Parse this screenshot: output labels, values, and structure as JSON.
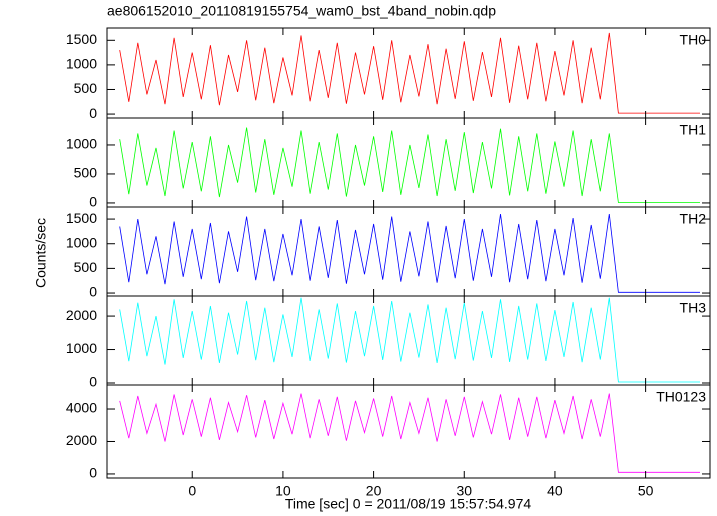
{
  "chart_data": [
    {
      "type": "line",
      "title": "ae806152010_20110819155754_wam0_bst_4band_nobin.qdp",
      "series": [
        {
          "name": "TH0",
          "color": "#ff0000",
          "values": [
            1300,
            250,
            1450,
            400,
            1100,
            200,
            1550,
            350,
            1250,
            300,
            1400,
            180,
            1200,
            450,
            1500,
            280,
            1350,
            220,
            1150,
            380,
            1600,
            260,
            1300,
            330,
            1450,
            210,
            1250,
            400,
            1380,
            290,
            1500,
            240,
            1200,
            360,
            1420,
            200,
            1330,
            310,
            1480,
            270,
            1260,
            350,
            1550,
            230,
            1390,
            300,
            1450,
            260,
            1280,
            380,
            1500,
            220,
            1350,
            300,
            1650,
            20,
            20,
            20,
            20,
            20,
            20,
            20,
            20,
            20,
            20
          ]
        }
      ],
      "ylim": [
        -80,
        1750
      ],
      "yticks": [
        0,
        500,
        1000,
        1500
      ]
    },
    {
      "type": "line",
      "series": [
        {
          "name": "TH1",
          "color": "#00ff00",
          "values": [
            1100,
            150,
            1200,
            300,
            950,
            120,
            1250,
            250,
            1050,
            200,
            1150,
            100,
            1000,
            350,
            1300,
            180,
            1100,
            140,
            950,
            280,
            1250,
            160,
            1050,
            230,
            1200,
            110,
            1000,
            300,
            1150,
            190,
            1250,
            140,
            1000,
            260,
            1180,
            120,
            1100,
            210,
            1220,
            170,
            1050,
            250,
            1280,
            130,
            1150,
            200,
            1200,
            160,
            1060,
            280,
            1250,
            120,
            1100,
            200,
            1200,
            8,
            8,
            8,
            8,
            8,
            8,
            8,
            8,
            8,
            8
          ]
        }
      ],
      "ylim": [
        -70,
        1465
      ],
      "yticks": [
        0,
        500,
        1000
      ]
    },
    {
      "type": "line",
      "ylabel": "Counts/sec",
      "series": [
        {
          "name": "TH2",
          "color": "#0000ff",
          "values": [
            1350,
            220,
            1500,
            380,
            1150,
            180,
            1450,
            330,
            1300,
            280,
            1420,
            200,
            1250,
            430,
            1550,
            260,
            1300,
            240,
            1200,
            360,
            1500,
            250,
            1350,
            310,
            1480,
            190,
            1280,
            380,
            1400,
            270,
            1550,
            230,
            1250,
            340,
            1450,
            210,
            1360,
            300,
            1500,
            250,
            1300,
            330,
            1600,
            220,
            1400,
            280,
            1480,
            240,
            1300,
            360,
            1520,
            210,
            1380,
            290,
            1600,
            15,
            15,
            15,
            15,
            15,
            15,
            15,
            15,
            15,
            15
          ]
        }
      ],
      "ylim": [
        -60,
        1745
      ],
      "yticks": [
        0,
        500,
        1000,
        1500
      ]
    },
    {
      "type": "line",
      "series": [
        {
          "name": "TH3",
          "color": "#00ffff",
          "values": [
            2200,
            650,
            2400,
            800,
            2000,
            550,
            2500,
            750,
            2150,
            700,
            2300,
            600,
            2100,
            850,
            2450,
            680,
            2250,
            620,
            2050,
            780,
            2550,
            660,
            2200,
            730,
            2380,
            610,
            2150,
            800,
            2300,
            690,
            2450,
            640,
            2100,
            760,
            2350,
            600,
            2250,
            710,
            2400,
            670,
            2150,
            750,
            2500,
            630,
            2300,
            700,
            2380,
            660,
            2180,
            780,
            2420,
            620,
            2250,
            700,
            2550,
            30,
            30,
            30,
            30,
            30,
            30,
            30,
            30,
            30,
            30
          ]
        }
      ],
      "ylim": [
        -60,
        2600
      ],
      "yticks": [
        0,
        1000,
        2000
      ]
    },
    {
      "type": "line",
      "xlabel": "Time [sec] 0 = 2011/08/19 15:57:54.974",
      "x": [
        -8,
        -7,
        -6,
        -5,
        -4,
        -3,
        -2,
        -1,
        0,
        1,
        2,
        3,
        4,
        5,
        6,
        7,
        8,
        9,
        10,
        11,
        12,
        13,
        14,
        15,
        16,
        17,
        18,
        19,
        20,
        21,
        22,
        23,
        24,
        25,
        26,
        27,
        28,
        29,
        30,
        31,
        32,
        33,
        34,
        35,
        36,
        37,
        38,
        39,
        40,
        41,
        42,
        43,
        44,
        45,
        46,
        47,
        48,
        49,
        50,
        51,
        52,
        53,
        54,
        55,
        56
      ],
      "series": [
        {
          "name": "TH0123",
          "color": "#ff00ff",
          "values": [
            4500,
            2200,
            4800,
            2500,
            4300,
            2000,
            4900,
            2400,
            4600,
            2300,
            4700,
            2100,
            4400,
            2600,
            4850,
            2250,
            4550,
            2150,
            4350,
            2450,
            4950,
            2200,
            4600,
            2350,
            4750,
            2050,
            4500,
            2550,
            4650,
            2300,
            4800,
            2150,
            4400,
            2500,
            4700,
            2000,
            4600,
            2350,
            4750,
            2250,
            4450,
            2450,
            4900,
            2100,
            4700,
            2300,
            4750,
            2200,
            4550,
            2500,
            4800,
            2150,
            4600,
            2300,
            4950,
            100,
            100,
            100,
            100,
            100,
            100,
            100,
            100,
            100,
            100
          ]
        }
      ],
      "ylim": [
        -250,
        5480
      ],
      "yticks": [
        0,
        2000,
        4000
      ],
      "xlim": [
        -9.4,
        57.1
      ],
      "xticks": [
        0,
        10,
        20,
        30,
        40,
        50
      ]
    }
  ]
}
